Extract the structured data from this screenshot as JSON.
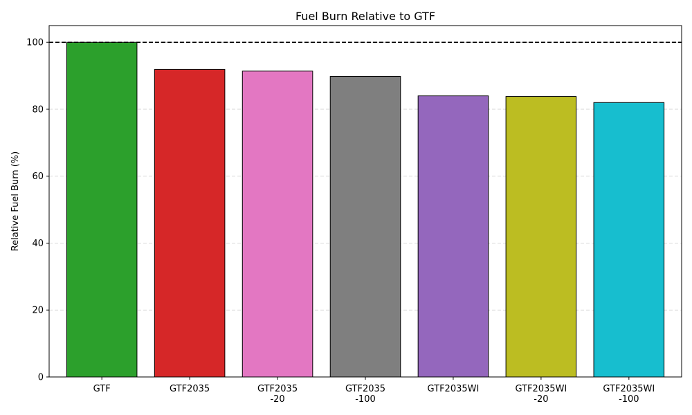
{
  "chart_data": {
    "type": "bar",
    "title": "Fuel Burn Relative to GTF",
    "xlabel": "",
    "ylabel": "Relative Fuel Burn (%)",
    "ylim": [
      0,
      105
    ],
    "yticks": [
      0,
      20,
      40,
      60,
      80,
      100
    ],
    "grid": "y-dashed",
    "reference_line": 100,
    "categories": [
      [
        "GTF"
      ],
      [
        "GTF2035"
      ],
      [
        "GTF2035",
        "-20"
      ],
      [
        "GTF2035",
        "-100"
      ],
      [
        "GTF2035WI"
      ],
      [
        "GTF2035WI",
        "-20"
      ],
      [
        "GTF2035WI",
        "-100"
      ]
    ],
    "values": [
      100.0,
      91.9,
      91.4,
      89.8,
      84.0,
      83.8,
      82.0
    ],
    "colors": [
      "#2ca02c",
      "#d62728",
      "#e377c2",
      "#7f7f7f",
      "#9467bd",
      "#bcbd22",
      "#17becf"
    ]
  }
}
